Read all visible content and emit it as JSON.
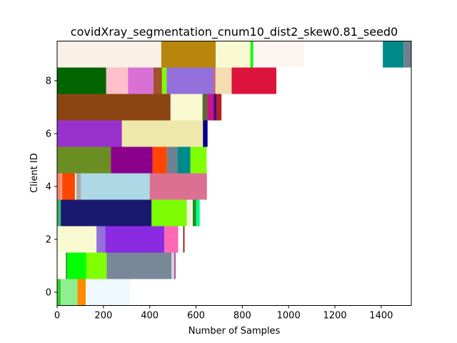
{
  "chart_data": {
    "type": "bar",
    "orientation": "horizontal",
    "stacked": true,
    "title": "covidXray_segmentation_cnum10_dist2_skew0.81_seed0",
    "xlabel": "Number of Samples",
    "ylabel": "Client ID",
    "xlim": [
      0,
      1530
    ],
    "ylim": [
      -0.5,
      9.5
    ],
    "xticks": [
      0,
      200,
      400,
      600,
      800,
      1000,
      1200,
      1400
    ],
    "yticks": [
      0,
      2,
      4,
      6,
      8
    ],
    "grid": false,
    "clients": [
      {
        "id": 0,
        "segments": [
          {
            "value": 16,
            "color": "#32cd32"
          },
          {
            "value": 72,
            "color": "#90ee90"
          },
          {
            "value": 36,
            "color": "#ff8c00"
          },
          {
            "value": 6,
            "color": "#ffffff"
          },
          {
            "value": 183,
            "color": "#f0f8ff"
          }
        ]
      },
      {
        "id": 1,
        "segments": [
          {
            "value": 38,
            "color": "#fffff0"
          },
          {
            "value": 4,
            "color": "#2f4f4f"
          },
          {
            "value": 84,
            "color": "#00ff00"
          },
          {
            "value": 88,
            "color": "#7fff00"
          },
          {
            "value": 280,
            "color": "#778899"
          },
          {
            "value": 13,
            "color": "#d3d3d3"
          },
          {
            "value": 4,
            "color": "#800080"
          }
        ]
      },
      {
        "id": 2,
        "segments": [
          {
            "value": 170,
            "color": "#fafad2"
          },
          {
            "value": 38,
            "color": "#9370db"
          },
          {
            "value": 255,
            "color": "#8a2be2"
          },
          {
            "value": 60,
            "color": "#ff69b4"
          },
          {
            "value": 22,
            "color": "#ffffff"
          },
          {
            "value": 5,
            "color": "#800000"
          }
        ]
      },
      {
        "id": 3,
        "segments": [
          {
            "value": 16,
            "color": "#3cb371"
          },
          {
            "value": 392,
            "color": "#191970"
          },
          {
            "value": 152,
            "color": "#7cfc00"
          },
          {
            "value": 26,
            "color": "#f5f5dc"
          },
          {
            "value": 14,
            "color": "#228b22"
          },
          {
            "value": 16,
            "color": "#00ff7f"
          }
        ]
      },
      {
        "id": 4,
        "segments": [
          {
            "value": 14,
            "color": "#fa8072"
          },
          {
            "value": 8,
            "color": "#ffa07a"
          },
          {
            "value": 55,
            "color": "#ff4500"
          },
          {
            "value": 6,
            "color": "#fff8dc"
          },
          {
            "value": 20,
            "color": "#a9a9a9"
          },
          {
            "value": 297,
            "color": "#add8e6"
          },
          {
            "value": 247,
            "color": "#db7093"
          }
        ]
      },
      {
        "id": 5,
        "segments": [
          {
            "value": 232,
            "color": "#6b8e23"
          },
          {
            "value": 180,
            "color": "#8b008b"
          },
          {
            "value": 62,
            "color": "#ff4500"
          },
          {
            "value": 46,
            "color": "#708090"
          },
          {
            "value": 56,
            "color": "#008b8b"
          },
          {
            "value": 70,
            "color": "#7fff00"
          }
        ]
      },
      {
        "id": 6,
        "segments": [
          {
            "value": 280,
            "color": "#9932cc"
          },
          {
            "value": 350,
            "color": "#eee8aa"
          },
          {
            "value": 20,
            "color": "#00008b"
          }
        ]
      },
      {
        "id": 7,
        "segments": [
          {
            "value": 490,
            "color": "#8b4513"
          },
          {
            "value": 138,
            "color": "#fafad2"
          },
          {
            "value": 20,
            "color": "#556b2f"
          },
          {
            "value": 28,
            "color": "#c71585"
          },
          {
            "value": 12,
            "color": "#4b0082"
          },
          {
            "value": 22,
            "color": "#b22222"
          }
        ]
      },
      {
        "id": 8,
        "segments": [
          {
            "value": 212,
            "color": "#006400"
          },
          {
            "value": 94,
            "color": "#ffc0cb"
          },
          {
            "value": 110,
            "color": "#da70d6"
          },
          {
            "value": 37,
            "color": "#a0522d"
          },
          {
            "value": 20,
            "color": "#7fff00"
          },
          {
            "value": 203,
            "color": "#9370db"
          },
          {
            "value": 8,
            "color": "#cd5c5c"
          },
          {
            "value": 70,
            "color": "#f5deb3"
          },
          {
            "value": 193,
            "color": "#dc143c"
          }
        ]
      },
      {
        "id": 9,
        "segments": [
          {
            "value": 450,
            "color": "#faf0e6"
          },
          {
            "value": 235,
            "color": "#b8860b"
          },
          {
            "value": 150,
            "color": "#fafad2"
          },
          {
            "value": 12,
            "color": "#00ff00"
          },
          {
            "value": 220,
            "color": "#fdf5f2"
          },
          {
            "value": 340,
            "color": "#ffffff"
          },
          {
            "value": 90,
            "color": "#008b8b"
          },
          {
            "value": 33,
            "color": "#708090"
          }
        ]
      }
    ]
  }
}
